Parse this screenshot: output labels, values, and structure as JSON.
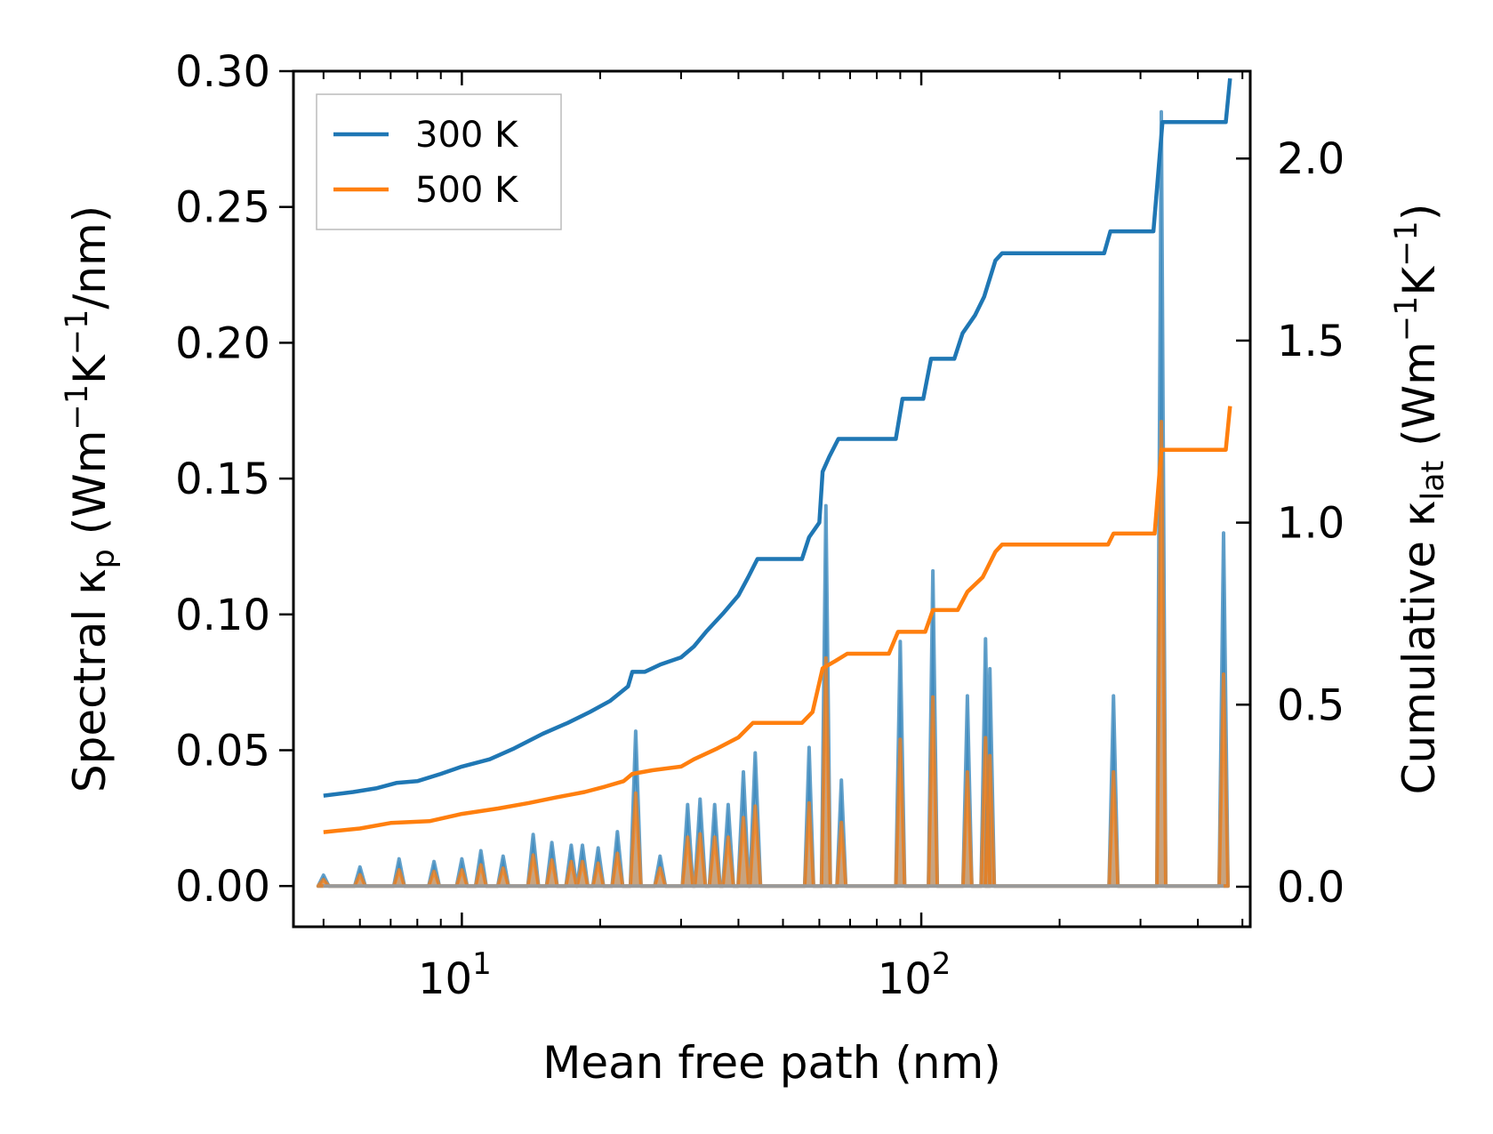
{
  "chart_data": {
    "type": "line",
    "xscale": "log",
    "xlim": [
      4.3,
      520
    ],
    "xlabel": "Mean free path (nm)",
    "xticks": [
      {
        "value": 10,
        "base": "10",
        "exp": "1"
      },
      {
        "value": 100,
        "base": "10",
        "exp": "2"
      }
    ],
    "y_left": {
      "label_prefix": "Spectral κ",
      "label_sub": "p",
      "label_units_a": " (Wm",
      "label_sup_a": "−1",
      "label_units_b": "K",
      "label_sup_b": "−1",
      "label_units_c": "/nm)",
      "lim": [
        -0.015,
        0.3
      ],
      "ticks": [
        "0.00",
        "0.05",
        "0.10",
        "0.15",
        "0.20",
        "0.25",
        "0.30"
      ]
    },
    "y_right": {
      "label_prefix": "Cumulative κ",
      "label_sub": "lat",
      "label_units_a": " (Wm",
      "label_sup_a": "−1",
      "label_units_b": "K",
      "label_sup_b": "−1",
      "label_units_c": ")",
      "lim": [
        -0.11,
        2.24
      ],
      "ticks": [
        "0.0",
        "0.5",
        "1.0",
        "1.5",
        "2.0"
      ]
    },
    "legend": {
      "position": "top-left",
      "entries": [
        {
          "name": "300 K",
          "color": "#1f77b4"
        },
        {
          "name": "500 K",
          "color": "#ff7f0e"
        }
      ]
    },
    "series": [
      {
        "name": "300 K",
        "color": "#1f77b4",
        "cumulative": [
          [
            5.0,
            0.25
          ],
          [
            5.8,
            0.26
          ],
          [
            6.5,
            0.27
          ],
          [
            7.2,
            0.285
          ],
          [
            8.0,
            0.29
          ],
          [
            9.0,
            0.31
          ],
          [
            10.0,
            0.33
          ],
          [
            11.5,
            0.35
          ],
          [
            13.0,
            0.38
          ],
          [
            15.0,
            0.42
          ],
          [
            17.0,
            0.45
          ],
          [
            19.0,
            0.48
          ],
          [
            21.0,
            0.51
          ],
          [
            23.0,
            0.55
          ],
          [
            23.5,
            0.59
          ],
          [
            25.0,
            0.59
          ],
          [
            27.0,
            0.61
          ],
          [
            30.0,
            0.63
          ],
          [
            32.0,
            0.66
          ],
          [
            34.0,
            0.7
          ],
          [
            37.0,
            0.75
          ],
          [
            40.0,
            0.8
          ],
          [
            42.0,
            0.85
          ],
          [
            44.0,
            0.9
          ],
          [
            55.0,
            0.9
          ],
          [
            57.0,
            0.96
          ],
          [
            60.0,
            1.0
          ],
          [
            61.0,
            1.14
          ],
          [
            63.0,
            1.18
          ],
          [
            66.0,
            1.23
          ],
          [
            72.0,
            1.23
          ],
          [
            88.0,
            1.23
          ],
          [
            91.0,
            1.34
          ],
          [
            101.0,
            1.34
          ],
          [
            105.0,
            1.45
          ],
          [
            118.0,
            1.45
          ],
          [
            123.0,
            1.52
          ],
          [
            131.0,
            1.57
          ],
          [
            137.0,
            1.62
          ],
          [
            145.0,
            1.72
          ],
          [
            150.0,
            1.74
          ],
          [
            250.0,
            1.74
          ],
          [
            258.0,
            1.8
          ],
          [
            320.0,
            1.8
          ],
          [
            335.0,
            2.1
          ],
          [
            400.0,
            2.1
          ],
          [
            460.0,
            2.1
          ],
          [
            470.0,
            2.22
          ]
        ],
        "spectral_spikes": [
          [
            5.0,
            0.004
          ],
          [
            6.0,
            0.007
          ],
          [
            7.3,
            0.01
          ],
          [
            8.7,
            0.009
          ],
          [
            10.0,
            0.01
          ],
          [
            11.0,
            0.013
          ],
          [
            12.3,
            0.011
          ],
          [
            14.3,
            0.019
          ],
          [
            15.7,
            0.016
          ],
          [
            17.3,
            0.015
          ],
          [
            18.3,
            0.015
          ],
          [
            19.8,
            0.014
          ],
          [
            21.8,
            0.02
          ],
          [
            23.9,
            0.057
          ],
          [
            27.0,
            0.011
          ],
          [
            31.0,
            0.03
          ],
          [
            33.0,
            0.032
          ],
          [
            35.5,
            0.03
          ],
          [
            38.0,
            0.03
          ],
          [
            41.0,
            0.042
          ],
          [
            43.5,
            0.049
          ],
          [
            57.0,
            0.051
          ],
          [
            62.0,
            0.14
          ],
          [
            67.0,
            0.039
          ],
          [
            90.0,
            0.09
          ],
          [
            106.0,
            0.116
          ],
          [
            126.0,
            0.07
          ],
          [
            138.0,
            0.091
          ],
          [
            141.0,
            0.08
          ],
          [
            262.0,
            0.07
          ],
          [
            333.0,
            0.285
          ],
          [
            455.0,
            0.13
          ]
        ]
      },
      {
        "name": "500 K",
        "color": "#ff7f0e",
        "cumulative": [
          [
            5.0,
            0.15
          ],
          [
            6.0,
            0.16
          ],
          [
            7.0,
            0.175
          ],
          [
            8.5,
            0.18
          ],
          [
            10.0,
            0.2
          ],
          [
            12.0,
            0.215
          ],
          [
            14.0,
            0.23
          ],
          [
            16.0,
            0.245
          ],
          [
            18.5,
            0.26
          ],
          [
            20.5,
            0.275
          ],
          [
            22.5,
            0.29
          ],
          [
            23.5,
            0.31
          ],
          [
            26.0,
            0.32
          ],
          [
            30.0,
            0.33
          ],
          [
            32.0,
            0.35
          ],
          [
            36.0,
            0.38
          ],
          [
            40.0,
            0.41
          ],
          [
            43.0,
            0.45
          ],
          [
            55.0,
            0.45
          ],
          [
            58.0,
            0.48
          ],
          [
            61.0,
            0.6
          ],
          [
            65.0,
            0.62
          ],
          [
            69.0,
            0.64
          ],
          [
            85.0,
            0.64
          ],
          [
            89.0,
            0.7
          ],
          [
            102.0,
            0.7
          ],
          [
            106.0,
            0.76
          ],
          [
            120.0,
            0.76
          ],
          [
            126.0,
            0.81
          ],
          [
            136.0,
            0.85
          ],
          [
            145.0,
            0.92
          ],
          [
            150.0,
            0.94
          ],
          [
            255.0,
            0.94
          ],
          [
            262.0,
            0.97
          ],
          [
            322.0,
            0.97
          ],
          [
            333.0,
            1.2
          ],
          [
            460.0,
            1.2
          ],
          [
            470.0,
            1.32
          ]
        ],
        "spectral_scale": 0.6
      }
    ]
  }
}
